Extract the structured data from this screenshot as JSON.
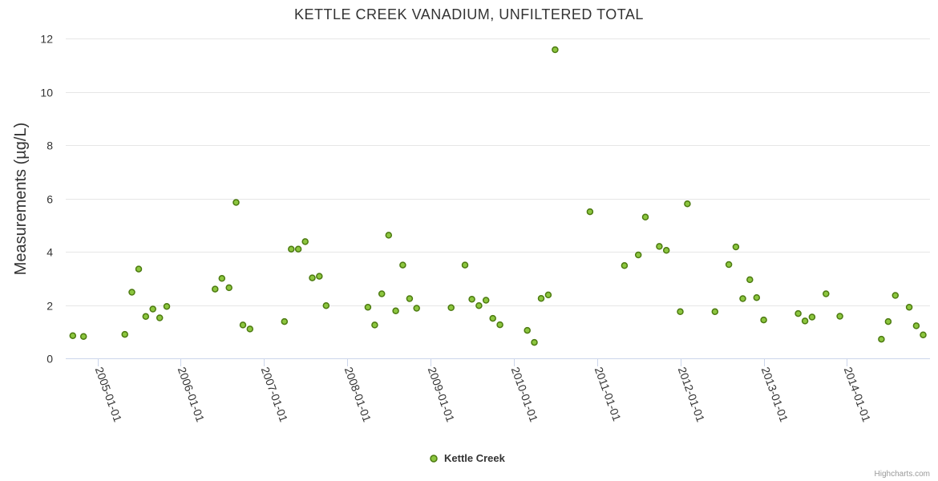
{
  "chart_data": {
    "type": "scatter",
    "title": "KETTLE CREEK VANADIUM, UNFILTERED TOTAL",
    "xlabel": "",
    "ylabel": "Measurements (µg/L)",
    "ylim": [
      0,
      12
    ],
    "yticks": [
      0,
      2,
      4,
      6,
      8,
      10,
      12
    ],
    "xlim": [
      "2004-08-15",
      "2014-12-31"
    ],
    "xticks": [
      "2005-01-01",
      "2006-01-01",
      "2007-01-01",
      "2008-01-01",
      "2009-01-01",
      "2010-01-01",
      "2011-01-01",
      "2012-01-01",
      "2013-01-01",
      "2014-01-01"
    ],
    "legend": "bottom-center",
    "grid": true,
    "color": "#8cc63f",
    "series": [
      {
        "name": "Kettle Creek",
        "points": [
          [
            "2004-09-15",
            0.85
          ],
          [
            "2004-11-01",
            0.82
          ],
          [
            "2005-05-01",
            0.9
          ],
          [
            "2005-06-01",
            2.48
          ],
          [
            "2005-07-01",
            3.35
          ],
          [
            "2005-08-01",
            1.57
          ],
          [
            "2005-09-01",
            1.85
          ],
          [
            "2005-10-01",
            1.52
          ],
          [
            "2005-11-01",
            1.95
          ],
          [
            "2006-06-01",
            2.6
          ],
          [
            "2006-07-01",
            3.0
          ],
          [
            "2006-08-01",
            2.65
          ],
          [
            "2006-09-01",
            5.85
          ],
          [
            "2006-10-01",
            1.25
          ],
          [
            "2006-11-01",
            1.1
          ],
          [
            "2007-04-01",
            1.38
          ],
          [
            "2007-05-01",
            4.1
          ],
          [
            "2007-06-01",
            4.1
          ],
          [
            "2007-07-01",
            4.38
          ],
          [
            "2007-08-01",
            3.02
          ],
          [
            "2007-09-01",
            3.08
          ],
          [
            "2007-10-01",
            1.98
          ],
          [
            "2008-04-01",
            1.92
          ],
          [
            "2008-05-01",
            1.25
          ],
          [
            "2008-06-01",
            2.42
          ],
          [
            "2008-07-01",
            4.62
          ],
          [
            "2008-08-01",
            1.78
          ],
          [
            "2008-09-01",
            3.5
          ],
          [
            "2008-10-01",
            2.24
          ],
          [
            "2008-11-01",
            1.88
          ],
          [
            "2009-04-01",
            1.9
          ],
          [
            "2009-06-01",
            3.5
          ],
          [
            "2009-07-01",
            2.22
          ],
          [
            "2009-08-01",
            1.98
          ],
          [
            "2009-09-01",
            2.18
          ],
          [
            "2009-10-01",
            1.5
          ],
          [
            "2009-11-01",
            1.26
          ],
          [
            "2010-03-01",
            1.05
          ],
          [
            "2010-04-01",
            0.6
          ],
          [
            "2010-05-01",
            2.25
          ],
          [
            "2010-06-01",
            2.38
          ],
          [
            "2010-07-01",
            11.58
          ],
          [
            "2010-12-01",
            5.5
          ],
          [
            "2011-05-01",
            3.48
          ],
          [
            "2011-07-01",
            3.88
          ],
          [
            "2011-08-01",
            5.3
          ],
          [
            "2011-10-01",
            4.2
          ],
          [
            "2011-11-01",
            4.05
          ],
          [
            "2012-01-01",
            1.75
          ],
          [
            "2012-02-01",
            5.8
          ],
          [
            "2012-06-01",
            1.75
          ],
          [
            "2012-08-01",
            3.52
          ],
          [
            "2012-09-01",
            4.18
          ],
          [
            "2012-10-01",
            2.24
          ],
          [
            "2012-11-01",
            2.95
          ],
          [
            "2012-12-01",
            2.28
          ],
          [
            "2013-01-01",
            1.44
          ],
          [
            "2013-06-01",
            1.68
          ],
          [
            "2013-07-01",
            1.4
          ],
          [
            "2013-08-01",
            1.55
          ],
          [
            "2013-10-01",
            2.42
          ],
          [
            "2013-12-01",
            1.58
          ],
          [
            "2014-06-01",
            0.72
          ],
          [
            "2014-07-01",
            1.38
          ],
          [
            "2014-08-01",
            2.36
          ],
          [
            "2014-10-01",
            1.92
          ],
          [
            "2014-11-01",
            1.22
          ],
          [
            "2014-12-01",
            0.88
          ]
        ]
      }
    ]
  },
  "credit": "Highcharts.com"
}
